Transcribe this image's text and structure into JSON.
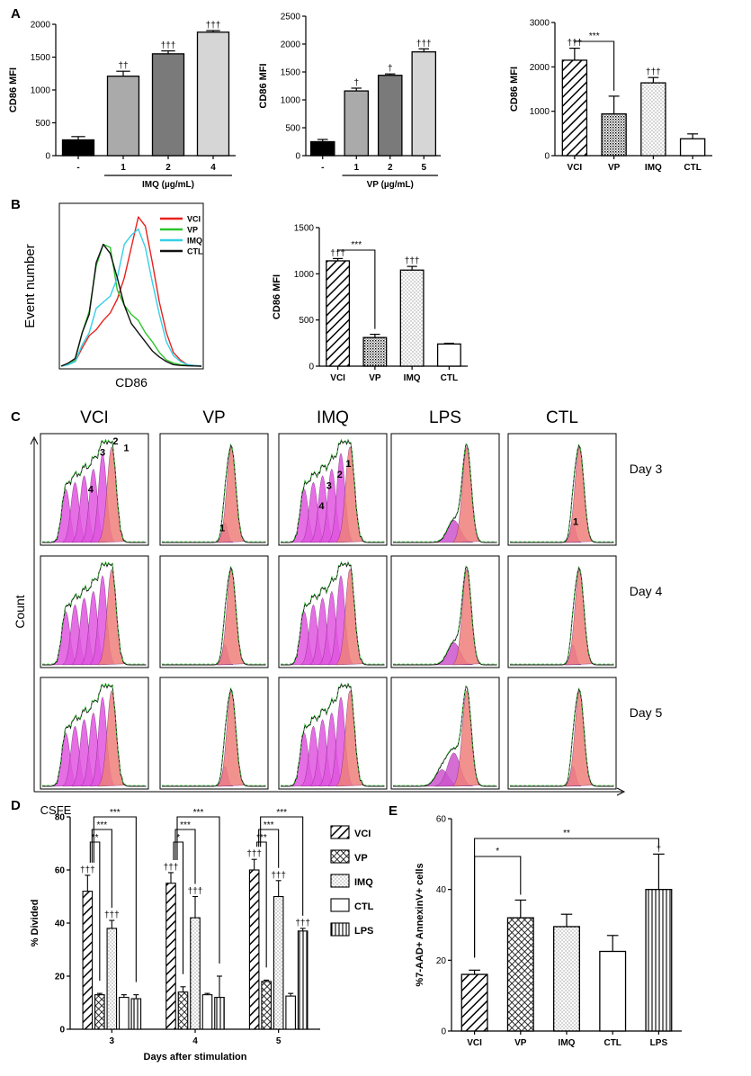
{
  "panel_labels": [
    "A",
    "B",
    "C",
    "D",
    "E"
  ],
  "chart_data": [
    {
      "id": "A1",
      "type": "bar",
      "ylabel": "CD86 MFI",
      "ylim": [
        0,
        2000
      ],
      "yticks": [
        0,
        500,
        1000,
        1500,
        2000
      ],
      "categories": [
        "-",
        "1",
        "2",
        "4"
      ],
      "values": [
        240,
        1210,
        1550,
        1880
      ],
      "errors": [
        50,
        75,
        45,
        25
      ],
      "fills": [
        "black",
        "#aaaaaa",
        "#7a7a7a",
        "#d6d6d6"
      ],
      "annotations": [
        "",
        "††",
        "†††",
        "†††"
      ],
      "group_label": "IMQ (µg/mL)"
    },
    {
      "id": "A2",
      "type": "bar",
      "ylabel": "CD86 MFI",
      "ylim": [
        0,
        2500
      ],
      "yticks": [
        0,
        500,
        1000,
        1500,
        2000,
        2500
      ],
      "categories": [
        "-",
        "1",
        "2",
        "5"
      ],
      "values": [
        250,
        1160,
        1440,
        1860
      ],
      "errors": [
        40,
        50,
        25,
        55
      ],
      "fills": [
        "black",
        "#aaaaaa",
        "#7a7a7a",
        "#d6d6d6"
      ],
      "annotations": [
        "",
        "†",
        "†",
        "†††"
      ],
      "group_label": "VP (µg/mL)"
    },
    {
      "id": "A3",
      "type": "bar",
      "ylabel": "CD86 MFI",
      "ylim": [
        0,
        3000
      ],
      "yticks": [
        0,
        1000,
        2000,
        3000
      ],
      "categories": [
        "VCI",
        "VP",
        "IMQ",
        "CTL"
      ],
      "values": [
        2150,
        940,
        1640,
        380
      ],
      "errors": [
        270,
        400,
        120,
        110
      ],
      "fills": [
        "hatch",
        "dots",
        "fine",
        "white"
      ],
      "annotations": [
        "†††",
        "",
        "†††",
        ""
      ],
      "brackets": [
        {
          "from": 0,
          "to": 1,
          "label": "***"
        }
      ]
    },
    {
      "id": "B1",
      "type": "line",
      "xlabel": "CD86",
      "ylabel": "Event number",
      "legend": [
        {
          "name": "VCI",
          "color": "#e8211d"
        },
        {
          "name": "VP",
          "color": "#2dc42d"
        },
        {
          "name": "IMQ",
          "color": "#34d0e6"
        },
        {
          "name": "CTL",
          "color": "#111111"
        }
      ],
      "x": [
        0,
        5,
        10,
        15,
        20,
        25,
        30,
        35,
        40,
        45,
        50,
        55,
        60,
        65,
        70,
        75,
        80,
        85,
        90,
        95,
        100
      ],
      "series": [
        {
          "name": "VCI",
          "values": [
            0,
            1,
            3,
            12,
            20,
            24,
            30,
            35,
            44,
            58,
            78,
            98,
            92,
            68,
            42,
            22,
            9,
            4,
            1,
            0.5,
            0
          ]
        },
        {
          "name": "VP",
          "values": [
            0,
            1,
            4,
            22,
            36,
            66,
            80,
            78,
            50,
            40,
            34,
            30,
            22,
            16,
            9,
            4,
            2,
            1,
            0.5,
            0.3,
            0
          ]
        },
        {
          "name": "IMQ",
          "values": [
            0,
            1,
            3,
            14,
            22,
            38,
            42,
            46,
            58,
            80,
            86,
            90,
            78,
            55,
            34,
            16,
            7,
            3,
            1,
            0.5,
            0
          ]
        },
        {
          "name": "CTL",
          "values": [
            0,
            2,
            5,
            22,
            34,
            68,
            80,
            74,
            58,
            40,
            28,
            22,
            16,
            10,
            6,
            3,
            1,
            0.5,
            0.3,
            0.1,
            0
          ]
        }
      ]
    },
    {
      "id": "B2",
      "type": "bar",
      "ylabel": "CD86 MFI",
      "ylim": [
        0,
        1500
      ],
      "yticks": [
        0,
        500,
        1000,
        1500
      ],
      "categories": [
        "VCI",
        "VP",
        "IMQ",
        "CTL"
      ],
      "values": [
        1140,
        310,
        1040,
        240
      ],
      "errors": [
        25,
        35,
        40,
        8
      ],
      "fills": [
        "hatch",
        "dots",
        "fine",
        "white"
      ],
      "annotations": [
        "†††",
        "",
        "†††",
        ""
      ],
      "brackets": [
        {
          "from": 0,
          "to": 1,
          "label": "***"
        }
      ]
    },
    {
      "id": "C",
      "type": "histogram_grid",
      "columns": [
        "VCI",
        "VP",
        "IMQ",
        "LPS",
        "CTL"
      ],
      "rows": [
        "Day 3",
        "Day 4",
        "Day 5"
      ],
      "ylabel": "Count",
      "xlabel": "CSFE",
      "peak_labels": {
        "VCI": [
          "1",
          "2",
          "3",
          "4"
        ],
        "VP": [
          "1"
        ],
        "IMQ": [
          "1",
          "2",
          "3",
          "4"
        ],
        "CTL": [
          "1"
        ]
      }
    },
    {
      "id": "D",
      "type": "bar",
      "ylabel": "% Divided",
      "xlabel": "Days after stimulation",
      "ylim": [
        0,
        80
      ],
      "yticks": [
        0,
        20,
        40,
        60,
        80
      ],
      "categories": [
        "3",
        "4",
        "5"
      ],
      "series": [
        {
          "name": "VCI",
          "values": [
            52,
            55,
            60
          ],
          "errors": [
            6,
            4,
            4
          ],
          "annotations": [
            "†††",
            "†††",
            "†††"
          ]
        },
        {
          "name": "VP",
          "values": [
            13,
            14,
            18
          ],
          "errors": [
            0.5,
            2,
            0.5
          ],
          "annotations": [
            "",
            "",
            ""
          ]
        },
        {
          "name": "IMQ",
          "values": [
            38,
            42,
            50
          ],
          "errors": [
            3,
            8,
            6
          ],
          "annotations": [
            "†††",
            "†††",
            "†††"
          ]
        },
        {
          "name": "CTL",
          "values": [
            12,
            13,
            12.5
          ],
          "errors": [
            1,
            0.5,
            1
          ],
          "annotations": [
            "",
            "",
            ""
          ]
        },
        {
          "name": "LPS",
          "values": [
            11.5,
            12,
            37
          ],
          "errors": [
            1.5,
            8,
            1
          ],
          "annotations": [
            "",
            "",
            "†††"
          ]
        }
      ],
      "brackets": [
        {
          "group": 0,
          "to": 1,
          "label": "**"
        },
        {
          "group": 0,
          "to": 2,
          "label": "***"
        },
        {
          "group": 0,
          "to": 4,
          "label": "***"
        },
        {
          "group": 1,
          "to": 1,
          "label": "*"
        },
        {
          "group": 1,
          "to": 2,
          "label": "***"
        },
        {
          "group": 1,
          "to": 4,
          "label": "***"
        },
        {
          "group": 2,
          "to": 1,
          "label": "***"
        },
        {
          "group": 2,
          "to": 2,
          "label": "***"
        },
        {
          "group": 2,
          "to": 4,
          "label": "***"
        }
      ]
    },
    {
      "id": "E",
      "type": "bar",
      "ylabel": "%7-AAD+ AnnexinV+ cells",
      "ylim": [
        0,
        60
      ],
      "yticks": [
        0,
        20,
        40,
        60
      ],
      "categories": [
        "VCI",
        "VP",
        "IMQ",
        "CTL",
        "LPS"
      ],
      "values": [
        16,
        32,
        29.5,
        22.5,
        40
      ],
      "errors": [
        1.2,
        5,
        3.5,
        4.5,
        10
      ],
      "fills": [
        "hatch",
        "cross",
        "fine",
        "white",
        "vert"
      ],
      "annotations": [
        "",
        "",
        "",
        "",
        "†"
      ],
      "brackets": [
        {
          "from": 0,
          "to": 1,
          "label": "*"
        },
        {
          "from": 0,
          "to": 4,
          "label": "**"
        }
      ]
    }
  ]
}
